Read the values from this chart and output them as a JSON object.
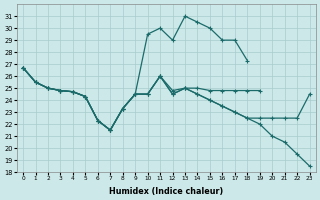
{
  "xlabel": "Humidex (Indice chaleur)",
  "xlim_min": -0.5,
  "xlim_max": 23.5,
  "ylim_min": 18,
  "ylim_max": 32,
  "yticks": [
    18,
    19,
    20,
    21,
    22,
    23,
    24,
    25,
    26,
    27,
    28,
    29,
    30,
    31
  ],
  "xticks": [
    0,
    1,
    2,
    3,
    4,
    5,
    6,
    7,
    8,
    9,
    10,
    11,
    12,
    13,
    14,
    15,
    16,
    17,
    18,
    19,
    20,
    21,
    22,
    23
  ],
  "bg_color": "#cce8e8",
  "line_color": "#1c6b6b",
  "grid_color": "#a8cccc",
  "series_peak_x": [
    0,
    1,
    2,
    3,
    4,
    5,
    6,
    7,
    8,
    9,
    10,
    11,
    12,
    13,
    14,
    15,
    16,
    17,
    18
  ],
  "series_peak_y": [
    26.7,
    25.5,
    25.0,
    24.8,
    24.7,
    24.3,
    22.3,
    21.5,
    23.3,
    24.5,
    29.5,
    30.0,
    29.0,
    31.0,
    30.5,
    30.0,
    29.0,
    29.0,
    27.3
  ],
  "series_flat_x": [
    0,
    1,
    2,
    3,
    4,
    5,
    6,
    7,
    8,
    9,
    10,
    11,
    12,
    13,
    14,
    15,
    16,
    17,
    18,
    19
  ],
  "series_flat_y": [
    26.7,
    25.5,
    25.0,
    24.8,
    24.7,
    24.3,
    22.3,
    21.5,
    23.3,
    24.5,
    24.5,
    26.0,
    24.8,
    25.0,
    25.0,
    24.8,
    24.8,
    24.8,
    24.8,
    24.8
  ],
  "series_mid_x": [
    0,
    1,
    2,
    3,
    4,
    5,
    6,
    7,
    8,
    9,
    10,
    11,
    12,
    13,
    14,
    15,
    16,
    17,
    18,
    19,
    20,
    21,
    22,
    23
  ],
  "series_mid_y": [
    26.7,
    25.5,
    25.0,
    24.8,
    24.7,
    24.3,
    22.3,
    21.5,
    23.3,
    24.5,
    24.5,
    26.0,
    24.5,
    25.0,
    24.5,
    24.0,
    23.5,
    23.0,
    22.5,
    22.5,
    22.5,
    22.5,
    22.5,
    24.5
  ],
  "series_low_x": [
    0,
    1,
    2,
    3,
    4,
    5,
    6,
    7,
    8,
    9,
    10,
    11,
    12,
    13,
    14,
    15,
    16,
    17,
    18,
    19,
    20,
    21,
    22,
    23
  ],
  "series_low_y": [
    26.7,
    25.5,
    25.0,
    24.8,
    24.7,
    24.3,
    22.3,
    21.5,
    23.3,
    24.5,
    24.5,
    26.0,
    24.5,
    25.0,
    24.5,
    24.0,
    23.5,
    23.0,
    22.5,
    22.0,
    21.0,
    20.5,
    19.5,
    18.5
  ]
}
